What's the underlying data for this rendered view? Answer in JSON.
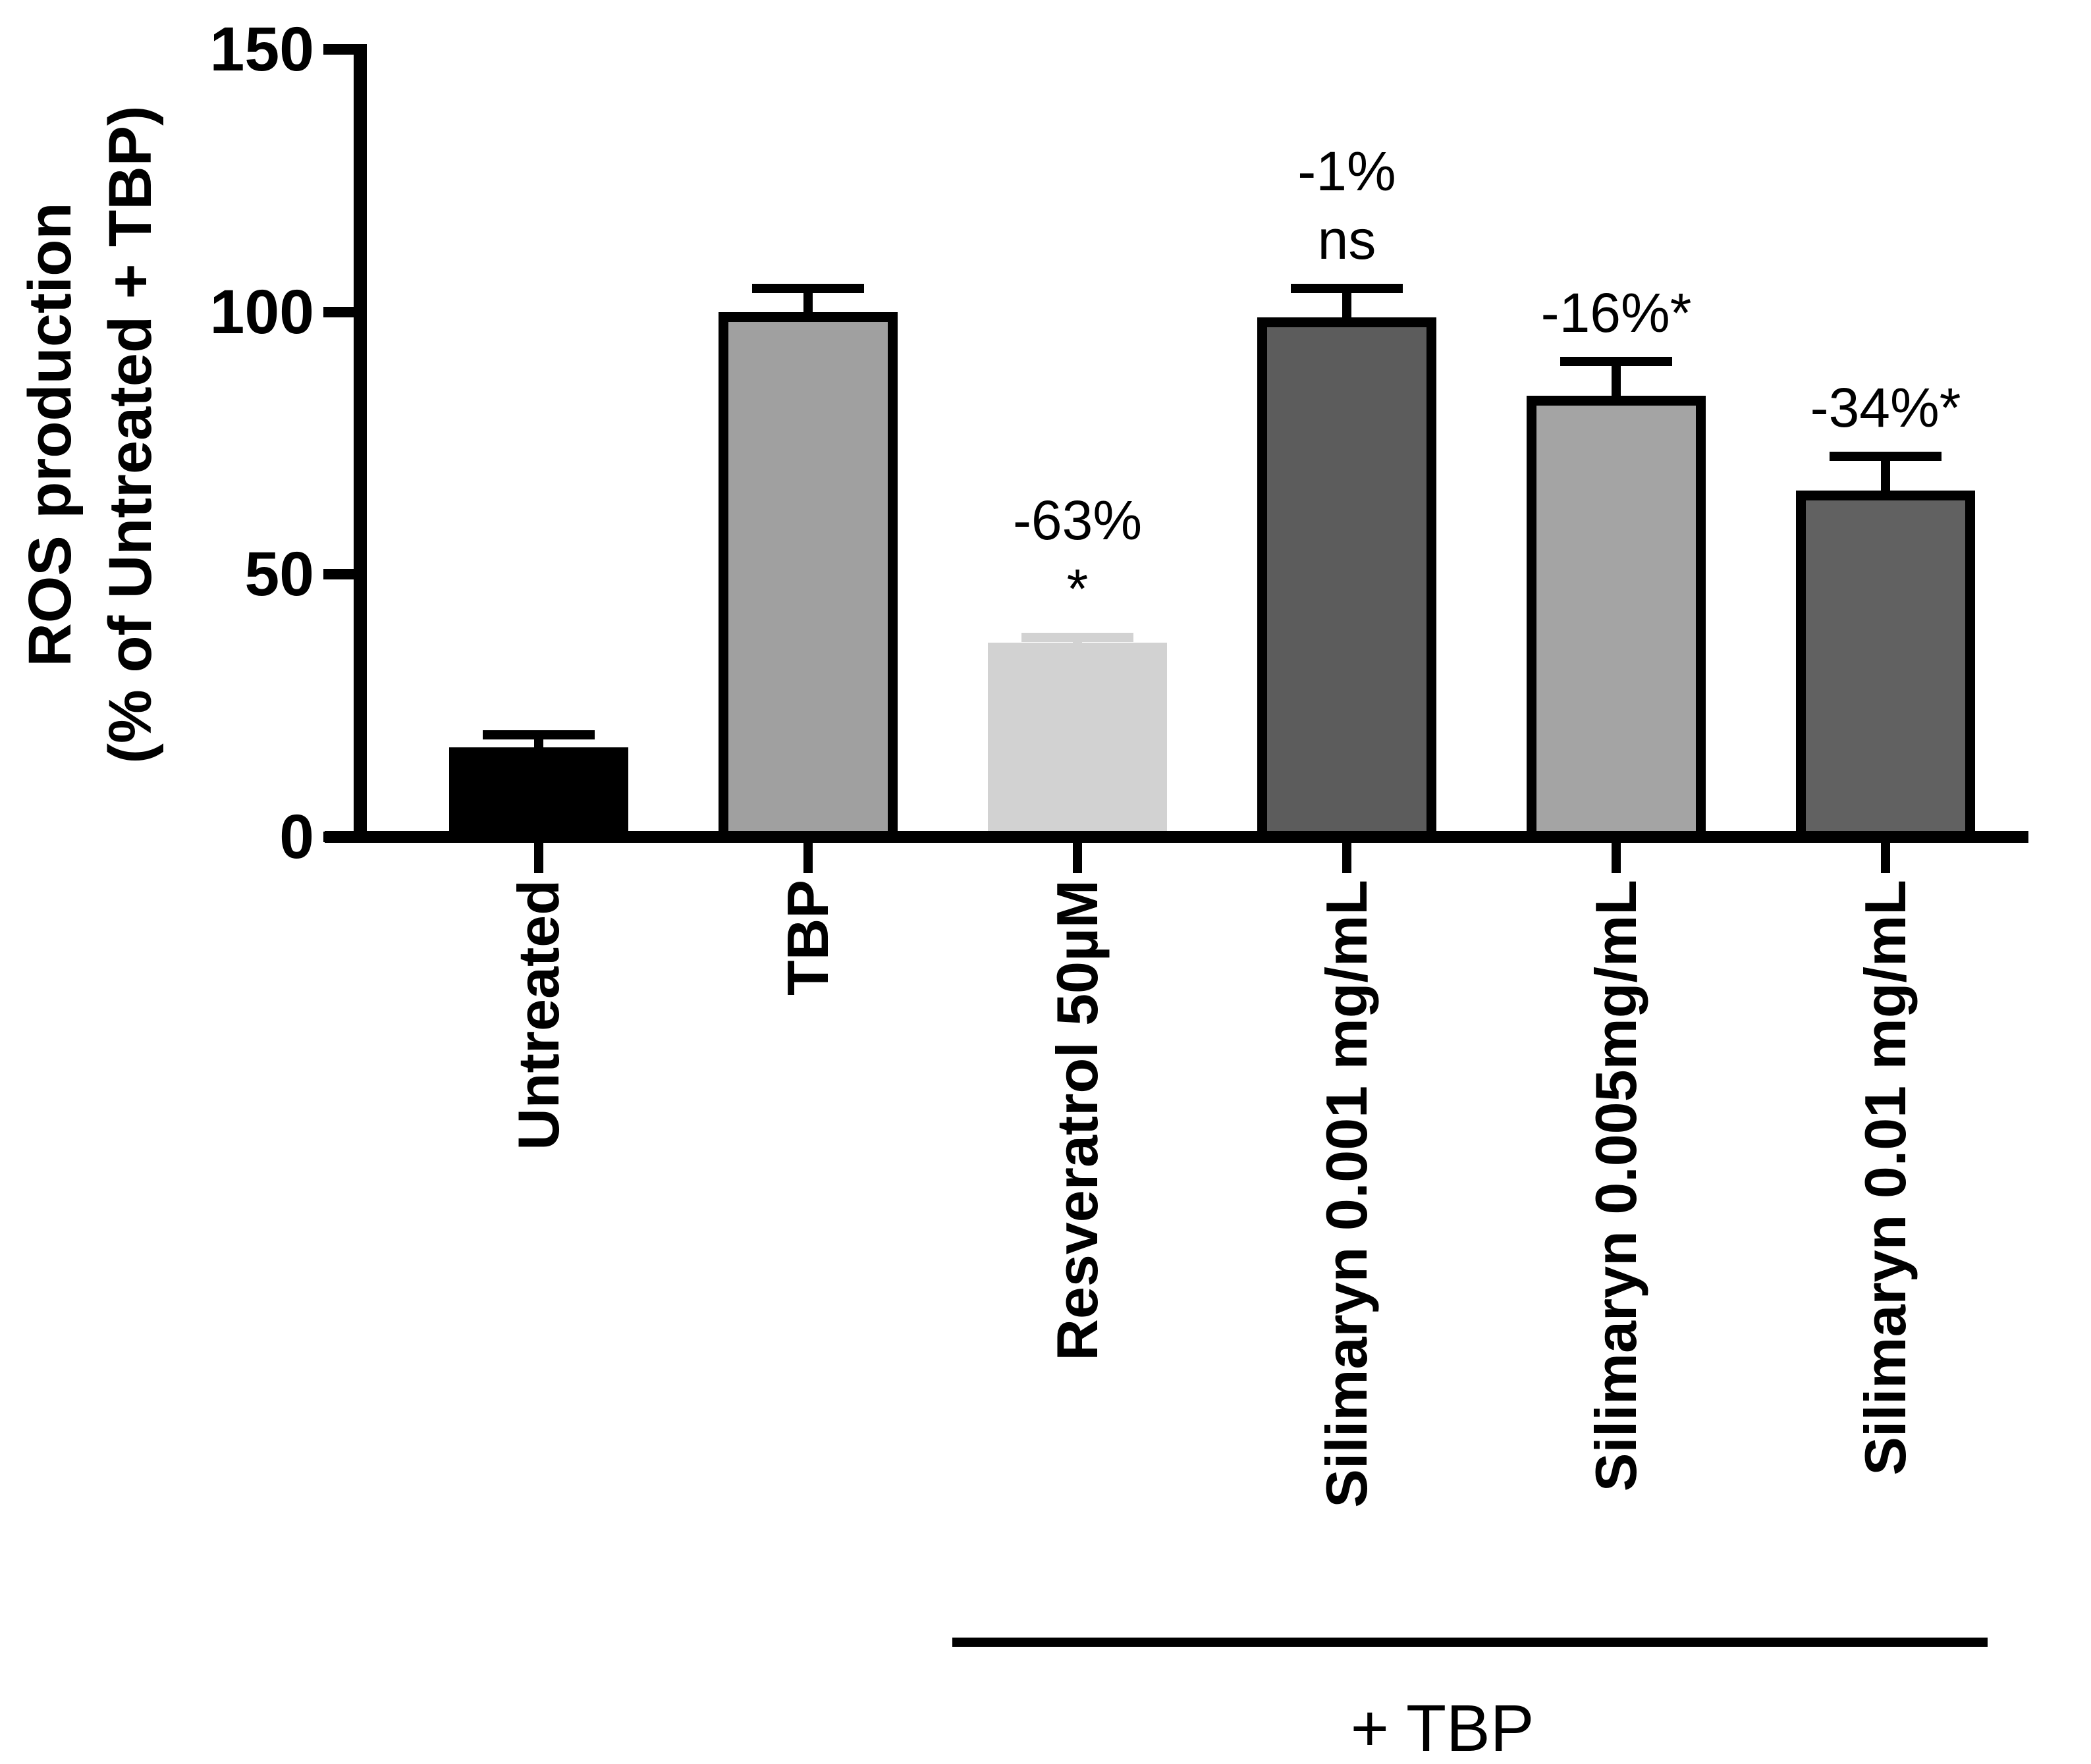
{
  "figure": {
    "background": "#ffffff",
    "text_color": "#000000"
  },
  "chart_data": {
    "type": "bar",
    "title": "",
    "ylabel_lines": [
      "ROS production",
      "(% of Untreated + TBP)"
    ],
    "xlabel": "",
    "ylim": [
      0,
      150
    ],
    "yticks": [
      0,
      50,
      100,
      150
    ],
    "ytick_labels": [
      "0",
      "50",
      "100",
      "150"
    ],
    "grid": false,
    "legend": null,
    "categories": [
      "Untreated",
      "TBP",
      "Resveratrol 50µM",
      "Silimaryn 0.001 mg/mL",
      "Silimaryn 0.005mg/mL",
      "Silimaryn 0.01 mg/mL"
    ],
    "values": [
      17,
      100,
      37,
      99,
      84,
      66
    ],
    "errors": [
      2.5,
      4.5,
      1,
      5.5,
      6.5,
      6.5
    ],
    "bar_colors": [
      "#000000",
      "#a0a0a0",
      "#d2d2d2",
      "#5c5c5c",
      "#a4a4a4",
      "#616161"
    ],
    "bar_has_black_border": [
      false,
      true,
      false,
      true,
      true,
      true
    ],
    "error_bar_colors": [
      "#000000",
      "#000000",
      "#d2d2d2",
      "#000000",
      "#000000",
      "#000000"
    ],
    "annotations": [
      {
        "category_index": 2,
        "lines": [
          "-63%",
          "*"
        ]
      },
      {
        "category_index": 3,
        "lines": [
          "-1%",
          "ns"
        ]
      },
      {
        "category_index": 4,
        "lines": [
          "-16%*"
        ]
      },
      {
        "category_index": 5,
        "lines": [
          "-34%*"
        ]
      }
    ],
    "group_bracket": {
      "label": "+ TBP",
      "from_category_index": 2,
      "to_category_index": 5
    }
  }
}
